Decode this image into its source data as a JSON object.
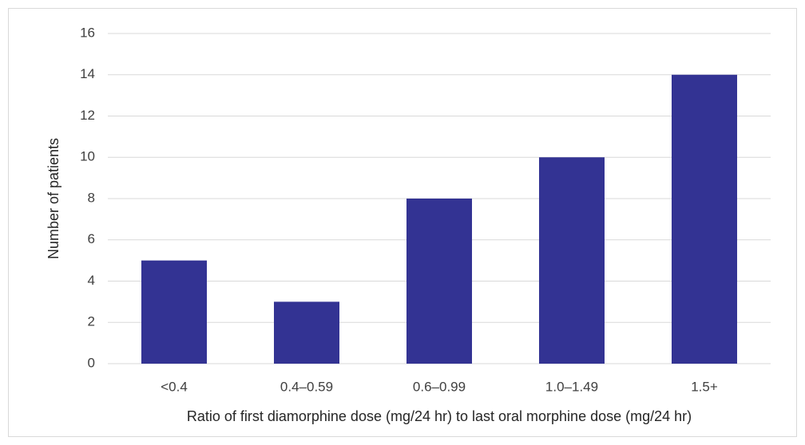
{
  "chart_data": {
    "type": "bar",
    "x_label": "Ratio of first diamorphine dose (mg/24 hr) to last oral morphine dose (mg/24 hr)",
    "y_label": "Number of patients",
    "categories": [
      "<0.4",
      "0.4–0.59",
      "0.6–0.99",
      "1.0–1.49",
      "1.5+"
    ],
    "values": [
      5,
      3,
      8,
      10,
      14
    ],
    "color": "#333393",
    "ylim": [
      0,
      16
    ],
    "yticks": [
      0,
      2,
      4,
      6,
      8,
      10,
      12,
      14,
      16
    ],
    "grid": true
  }
}
